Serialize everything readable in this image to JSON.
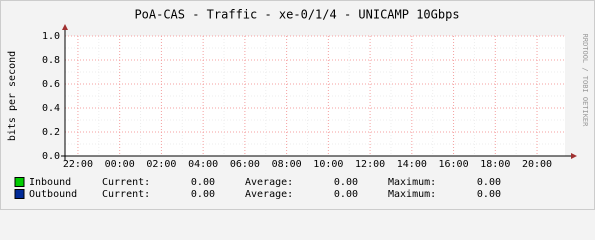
{
  "chart_data": {
    "type": "line",
    "title": "PoA-CAS - Traffic - xe-0/1/4 - UNICAMP 10Gbps",
    "y_label": "bits per second",
    "watermark": "RRDTOOL / TOBI OETIKER",
    "xlim": [
      21.38,
      45.34
    ],
    "xticks": [
      {
        "value": 22,
        "label": "22:00"
      },
      {
        "value": 24,
        "label": "00:00"
      },
      {
        "value": 26,
        "label": "02:00"
      },
      {
        "value": 28,
        "label": "04:00"
      },
      {
        "value": 30,
        "label": "06:00"
      },
      {
        "value": 32,
        "label": "08:00"
      },
      {
        "value": 34,
        "label": "10:00"
      },
      {
        "value": 36,
        "label": "12:00"
      },
      {
        "value": 38,
        "label": "14:00"
      },
      {
        "value": 40,
        "label": "16:00"
      },
      {
        "value": 42,
        "label": "18:00"
      },
      {
        "value": 44,
        "label": "20:00"
      }
    ],
    "ylim": [
      0,
      1
    ],
    "yticks": [
      {
        "value": 0,
        "label": "0.0"
      },
      {
        "value": 0.2,
        "label": "0.2"
      },
      {
        "value": 0.4,
        "label": "0.4"
      },
      {
        "value": 0.6,
        "label": "0.6"
      },
      {
        "value": 0.8,
        "label": "0.8"
      },
      {
        "value": 1,
        "label": "1.0"
      }
    ],
    "grid": true,
    "stat_names": [
      "Current:",
      "Average:",
      "Maximum:"
    ],
    "series": [
      {
        "name": "Inbound",
        "color": "#00cc00",
        "stats": [
          0,
          0,
          0
        ],
        "stats_labels": [
          "0.00",
          "0.00",
          "0.00"
        ]
      },
      {
        "name": "Outbound",
        "color": "#002a97",
        "stats": [
          0,
          0,
          0
        ],
        "stats_labels": [
          "0.00",
          "0.00",
          "0.00"
        ]
      }
    ]
  }
}
